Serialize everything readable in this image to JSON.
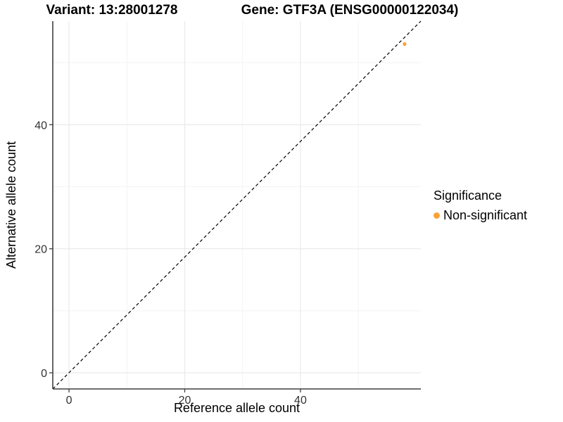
{
  "titles": {
    "variant": "Variant: 13:28001278",
    "gene": "Gene: GTF3A (ENSG00000122034)"
  },
  "chart_data": {
    "type": "scatter",
    "xlabel": "Reference allele count",
    "ylabel": "Alternative allele count",
    "x_ticks": [
      0,
      20,
      40
    ],
    "y_ticks": [
      0,
      20,
      40
    ],
    "x_minor_ticks": [
      10,
      30,
      50
    ],
    "y_minor_ticks": [
      10,
      30,
      50
    ],
    "xlim": [
      -2.8,
      60.8
    ],
    "ylim": [
      -2.6,
      56.7
    ],
    "grid": true,
    "points": [
      {
        "x": 58,
        "y": 53,
        "series": "Non-significant"
      }
    ],
    "reference_line": {
      "type": "identity",
      "label": "y = x",
      "linetype": "dashed",
      "color": "#000000"
    },
    "legend": {
      "position": "right",
      "title": "Significance",
      "entries": [
        {
          "label": "Non-significant",
          "color": "#F9A338"
        }
      ]
    },
    "colors": {
      "point": "#F9A338",
      "grid_major": "#e8e8e8",
      "grid_minor": "#f3f3f3",
      "axis_line": "#3f3f3f",
      "tick_label": "#333333"
    }
  }
}
